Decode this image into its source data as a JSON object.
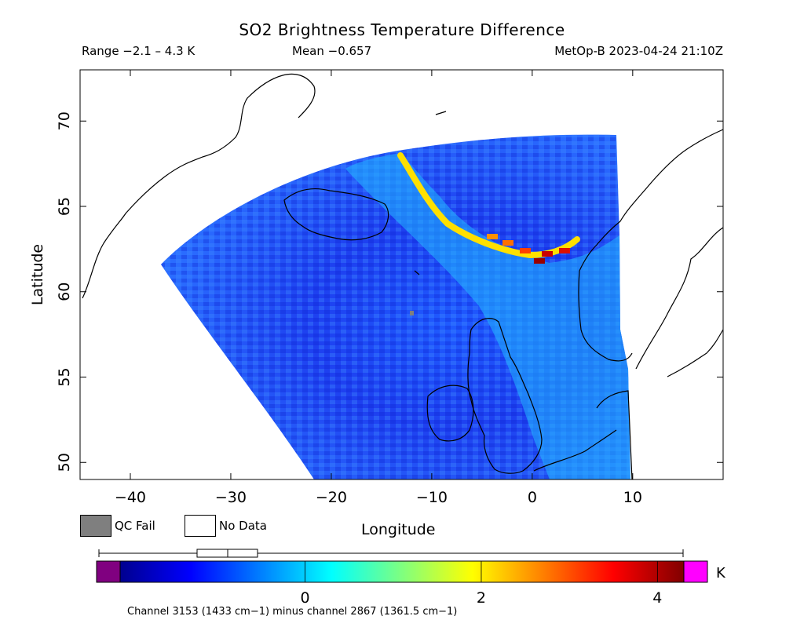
{
  "plot": {
    "title": "SO2 Brightness Temperature Difference",
    "range_text": "Range −2.1 – 4.3 K",
    "mean_text": "Mean −0.657",
    "satellite_time": "MetOp-B 2023-04-24 21:10Z",
    "xlabel": "Longitude",
    "ylabel": "Latitude",
    "footnote": "Channel 3153 (1433 cm−1) minus channel 2867 (1361.5 cm−1)"
  },
  "legend": {
    "qc_fail": "QC Fail",
    "no_data": "No Data",
    "qc_fail_color": "#7f7f7f",
    "no_data_color": "#ffffff"
  },
  "colorbar": {
    "unit": "K",
    "min": -2.1,
    "max": 4.3,
    "ticks": [
      {
        "value": 0,
        "label": "0"
      },
      {
        "value": 2,
        "label": "2"
      },
      {
        "value": 4,
        "label": "4"
      }
    ],
    "under_color": "#800080",
    "over_color": "#ff00ff"
  },
  "map": {
    "xlim": [
      -45,
      19
    ],
    "ylim": [
      49,
      73
    ],
    "x_ticks": [
      {
        "value": -40,
        "label": "−40"
      },
      {
        "value": -30,
        "label": "−30"
      },
      {
        "value": -20,
        "label": "−20"
      },
      {
        "value": -10,
        "label": "−10"
      },
      {
        "value": 0,
        "label": "0"
      },
      {
        "value": 10,
        "label": "10"
      }
    ],
    "y_ticks": [
      {
        "value": 50,
        "label": "50"
      },
      {
        "value": 55,
        "label": "55"
      },
      {
        "value": 60,
        "label": "60"
      },
      {
        "value": 65,
        "label": "65"
      },
      {
        "value": 70,
        "label": "70"
      }
    ],
    "plume_band": {
      "description_values_K": [
        2.5,
        3.0,
        4.0
      ],
      "peak_K": 4.3
    }
  }
}
